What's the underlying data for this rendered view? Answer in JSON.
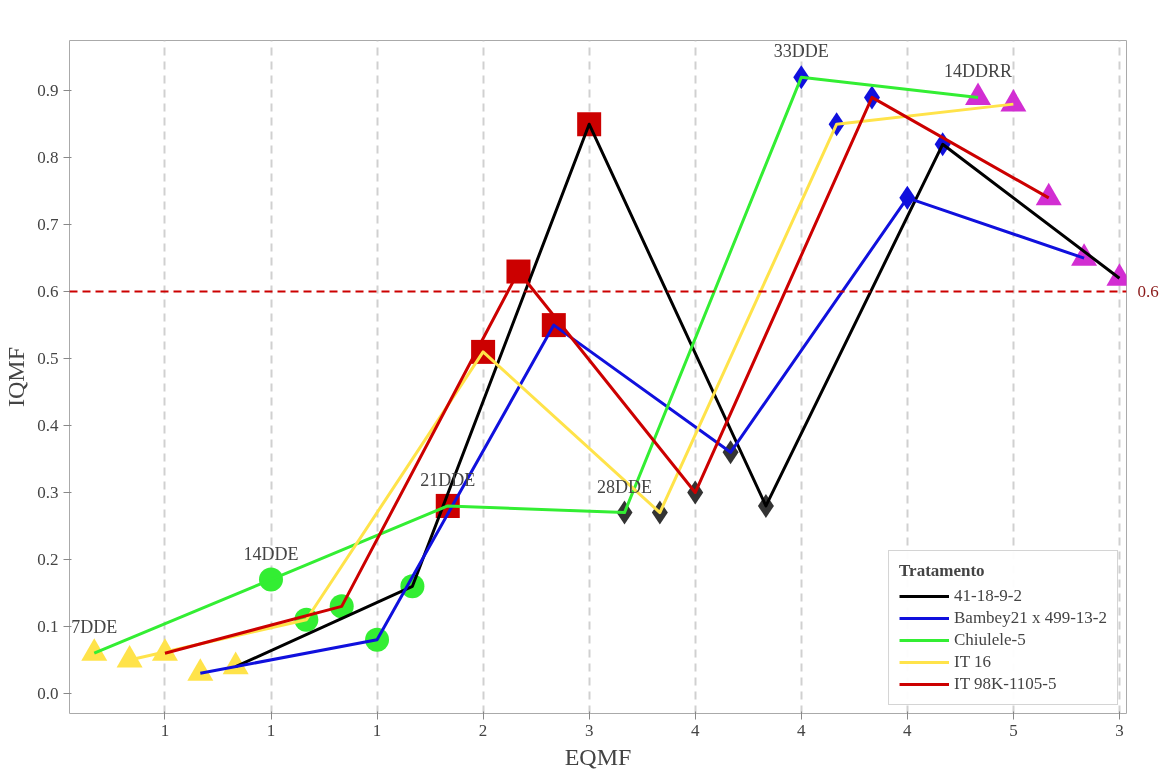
{
  "chart_data": {
    "type": "line",
    "xlabel": "EQMF",
    "ylabel": "IQMF",
    "legend_title": "Tratamento",
    "categories": [
      null,
      null,
      "1",
      null,
      null,
      "1",
      null,
      null,
      "1",
      null,
      null,
      "2",
      null,
      null,
      "3",
      null,
      null,
      "4",
      null,
      null,
      "4",
      null,
      null,
      "4",
      null,
      null,
      "5",
      null,
      null,
      "3"
    ],
    "ylim": [
      -0.03,
      0.975
    ],
    "yticks": [
      {
        "value": 0,
        "label": "0.0"
      },
      0.1,
      0.2,
      0.3,
      0.4,
      0.5,
      0.6,
      0.7,
      0.8,
      0.9
    ],
    "grid": "x",
    "legend": "bottom right",
    "series": [
      {
        "name": "41-18-9-2",
        "color": "#000000",
        "values": [
          null,
          null,
          null,
          null,
          0.04,
          null,
          null,
          null,
          null,
          0.16,
          null,
          null,
          null,
          null,
          0.85,
          null,
          null,
          null,
          null,
          0.28,
          null,
          null,
          null,
          null,
          0.82,
          null,
          null,
          null,
          null,
          0.62
        ]
      },
      {
        "name": "Bambey21 x 499-13-2",
        "color": "#1010dd",
        "values": [
          null,
          null,
          null,
          0.03,
          null,
          null,
          null,
          null,
          0.08,
          null,
          null,
          null,
          null,
          0.55,
          null,
          null,
          null,
          null,
          0.36,
          null,
          null,
          null,
          null,
          0.74,
          null,
          null,
          null,
          null,
          0.65,
          null
        ]
      },
      {
        "name": "Chiulele-5",
        "color": "#33ee33",
        "values": [
          0.06,
          null,
          null,
          null,
          null,
          0.17,
          null,
          null,
          null,
          null,
          0.28,
          null,
          null,
          null,
          null,
          0.27,
          null,
          null,
          null,
          null,
          0.92,
          null,
          null,
          null,
          null,
          0.89,
          null,
          null,
          null,
          null
        ]
      },
      {
        "name": "IT 16",
        "color": "#ffe34a",
        "values": [
          null,
          0.05,
          null,
          null,
          null,
          null,
          0.11,
          null,
          null,
          null,
          null,
          0.51,
          null,
          null,
          null,
          null,
          0.27,
          null,
          null,
          null,
          null,
          0.85,
          null,
          null,
          null,
          null,
          0.88,
          null,
          null,
          null
        ]
      },
      {
        "name": "IT 98K-1105-5",
        "color": "#cc0000",
        "values": [
          null,
          null,
          0.06,
          null,
          null,
          null,
          null,
          0.13,
          null,
          null,
          null,
          null,
          0.63,
          null,
          null,
          null,
          null,
          0.3,
          null,
          null,
          null,
          null,
          0.89,
          null,
          null,
          null,
          null,
          0.74,
          null,
          null
        ]
      },
      {
        "type": "scatter",
        "color": "#ffe34a",
        "marker": "triangle",
        "values": [
          0.06,
          0.05,
          0.06,
          0.03,
          0.04,
          null,
          null,
          null,
          null,
          null,
          null,
          null,
          null,
          null,
          null,
          null,
          null,
          null,
          null,
          null,
          null,
          null,
          null,
          null,
          null,
          null,
          null,
          null,
          null,
          null
        ]
      },
      {
        "type": "scatter",
        "color": "#33ee33",
        "marker": "circle",
        "values": [
          null,
          null,
          null,
          null,
          null,
          0.17,
          0.11,
          0.13,
          0.08,
          0.16,
          null,
          null,
          null,
          null,
          null,
          null,
          null,
          null,
          null,
          null,
          null,
          null,
          null,
          null,
          null,
          null,
          null,
          null,
          null,
          null
        ]
      },
      {
        "type": "scatter",
        "color": "#cc0000",
        "marker": "square",
        "values": [
          null,
          null,
          null,
          null,
          null,
          null,
          null,
          null,
          null,
          null,
          0.28,
          0.51,
          0.63,
          0.55,
          0.85,
          null,
          null,
          null,
          null,
          null,
          null,
          null,
          null,
          null,
          null,
          null,
          null,
          null,
          null,
          null
        ]
      },
      {
        "type": "scatter",
        "color": "#333333",
        "marker": "diamond",
        "values": [
          null,
          null,
          null,
          null,
          null,
          null,
          null,
          null,
          null,
          null,
          null,
          null,
          null,
          null,
          null,
          0.27,
          0.27,
          0.3,
          0.36,
          0.28,
          null,
          null,
          null,
          null,
          null,
          null,
          null,
          null,
          null,
          null
        ]
      },
      {
        "type": "scatter",
        "color": "#1010dd",
        "marker": "diamond",
        "values": [
          null,
          null,
          null,
          null,
          null,
          null,
          null,
          null,
          null,
          null,
          null,
          null,
          null,
          null,
          null,
          null,
          null,
          null,
          null,
          null,
          0.92,
          0.85,
          0.89,
          0.74,
          0.82,
          null,
          null,
          null,
          null,
          null
        ]
      },
      {
        "type": "scatter",
        "color": "#d22ed2",
        "marker": "triangle",
        "values": [
          null,
          null,
          null,
          null,
          null,
          null,
          null,
          null,
          null,
          null,
          null,
          null,
          null,
          null,
          null,
          null,
          null,
          null,
          null,
          null,
          null,
          null,
          null,
          null,
          null,
          0.89,
          0.88,
          0.74,
          0.65,
          0.62
        ]
      }
    ],
    "ref_lines": [
      {
        "axis": "y",
        "value": 0.6,
        "label": "0.6",
        "color": "#cc0000",
        "line_style": "dashed"
      }
    ],
    "annotations": [
      "7DDE",
      "14DDE",
      "21DDE",
      "28DDE",
      "33DDE",
      "14DDRR"
    ]
  }
}
